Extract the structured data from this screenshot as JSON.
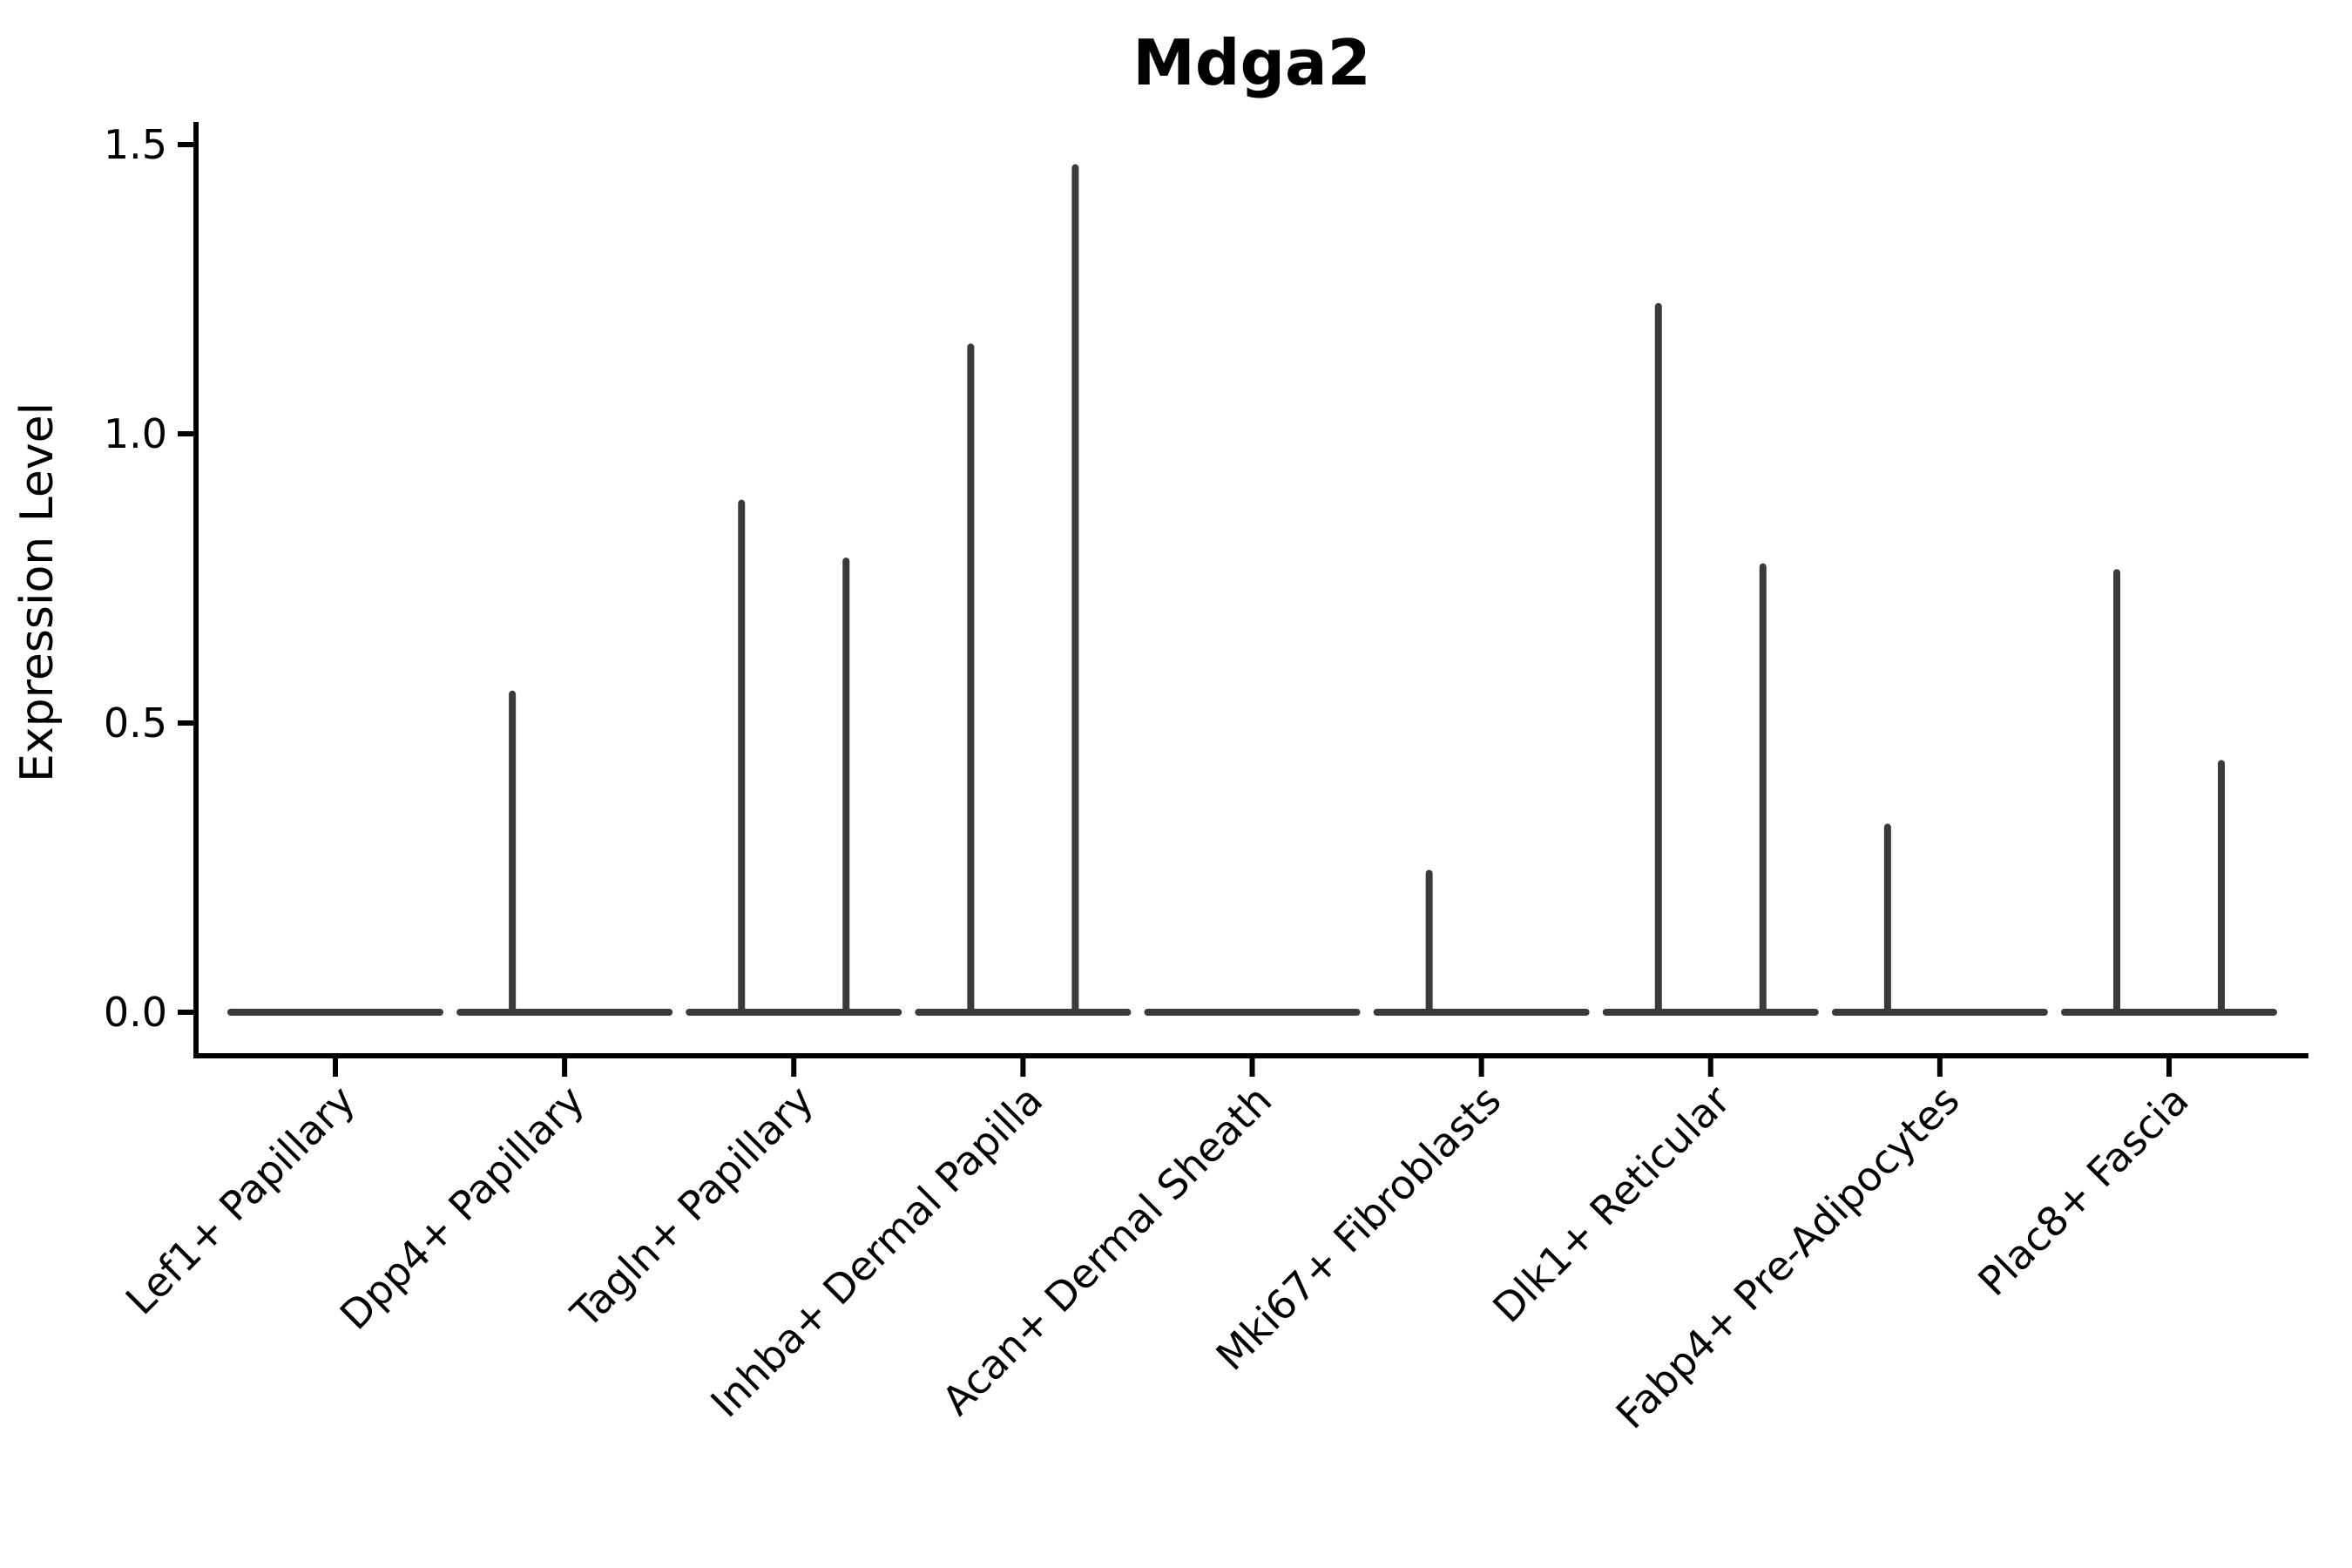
{
  "chart_data": {
    "type": "violin",
    "title": "Mdga2",
    "ylabel": "Expression Level",
    "xlabel": "",
    "ylim": [
      -0.075,
      1.57
    ],
    "grid": false,
    "legend": "none",
    "yticks": [
      {
        "value": 0.0,
        "label": "0.0"
      },
      {
        "value": 0.5,
        "label": "0.5"
      },
      {
        "value": 1.0,
        "label": "1.0"
      },
      {
        "value": 1.5,
        "label": "1.5"
      }
    ],
    "categories": [
      "Lef1+ Papillary",
      "Dpp4+ Papillary",
      "Tagln+ Papillary",
      "Inhba+ Dermal Papilla",
      "Acan+ Dermal Sheath",
      "Mki67+ Fibroblasts",
      "Dlk1+ Reticular",
      "Fabp4+ Pre-Adipocytes",
      "Plac8+ Fascia"
    ],
    "violins": [
      {
        "category": "Lef1+ Papillary",
        "baseline": 0.0,
        "left_spike_max": 0.0,
        "right_spike_max": 0.0
      },
      {
        "category": "Dpp4+ Papillary",
        "baseline": 0.0,
        "left_spike_max": 0.55,
        "right_spike_max": 0.0
      },
      {
        "category": "Tagln+ Papillary",
        "baseline": 0.0,
        "left_spike_max": 0.88,
        "right_spike_max": 0.78
      },
      {
        "category": "Inhba+ Dermal Papilla",
        "baseline": 0.0,
        "left_spike_max": 1.15,
        "right_spike_max": 1.46
      },
      {
        "category": "Acan+ Dermal Sheath",
        "baseline": 0.0,
        "left_spike_max": 0.0,
        "right_spike_max": 0.0
      },
      {
        "category": "Mki67+ Fibroblasts",
        "baseline": 0.0,
        "left_spike_max": 0.24,
        "right_spike_max": 0.0
      },
      {
        "category": "Dlk1+ Reticular",
        "baseline": 0.0,
        "left_spike_max": 1.22,
        "right_spike_max": 0.77
      },
      {
        "category": "Fabp4+ Pre-Adipocytes",
        "baseline": 0.0,
        "left_spike_max": 0.32,
        "right_spike_max": 0.0
      },
      {
        "category": "Plac8+ Fascia",
        "baseline": 0.0,
        "left_spike_max": 0.76,
        "right_spike_max": 0.43
      }
    ],
    "colors": {
      "violin_stroke": "#3a3a3a",
      "axis": "#000000",
      "text": "#000000",
      "background": "#ffffff"
    }
  }
}
